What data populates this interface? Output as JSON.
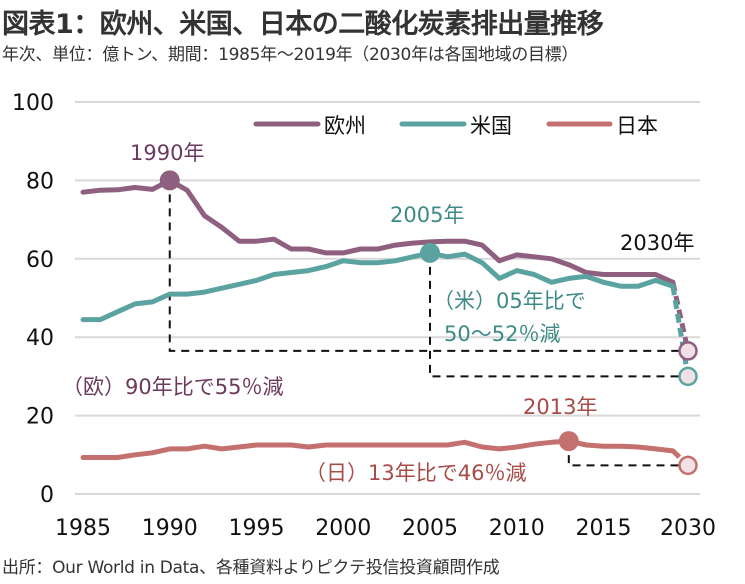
{
  "title": "図表1：欧州、米国、日本の二酸化炭素排出量推移",
  "subtitle": "年次、単位：億トン、期間：1985年～2019年（2030年は各国地域の目標）",
  "source": "出所：Our World in Data、各種資料よりピクテ投信投資顧問作成",
  "colors": {
    "europe": "#8e5f7f",
    "us": "#5ba3a0",
    "japan": "#c4706e",
    "grid": "#d9d9d9"
  },
  "chart_data": {
    "type": "line",
    "title": "欧州、米国、日本の二酸化炭素排出量推移",
    "xlabel": "",
    "ylabel": "億トン",
    "ylim": [
      0,
      100
    ],
    "yticks": [
      "0",
      "20",
      "40",
      "60",
      "80",
      "100"
    ],
    "xticks": [
      "1985",
      "1990",
      "1995",
      "2000",
      "2005",
      "2010",
      "2015",
      "2030"
    ],
    "grid": true,
    "legend_position": "top-right",
    "x": [
      1985,
      1986,
      1987,
      1988,
      1989,
      1990,
      1991,
      1992,
      1993,
      1994,
      1995,
      1996,
      1997,
      1998,
      1999,
      2000,
      2001,
      2002,
      2003,
      2004,
      2005,
      2006,
      2007,
      2008,
      2009,
      2010,
      2011,
      2012,
      2013,
      2014,
      2015,
      2016,
      2017,
      2018,
      2019
    ],
    "series": [
      {
        "name": "欧州",
        "key": "europe",
        "values": [
          77,
          77.5,
          77.6,
          78.2,
          77.7,
          80,
          77.5,
          71,
          68,
          64.5,
          64.5,
          65,
          62.5,
          62.5,
          61.5,
          61.5,
          62.5,
          62.5,
          63.5,
          64,
          64.3,
          64.5,
          64.5,
          63.5,
          59.5,
          61,
          60.5,
          60,
          58.5,
          56.5,
          56,
          56,
          56,
          56,
          54
        ],
        "target": {
          "x": 2030,
          "value": 36.5
        },
        "highlight": {
          "x": 1990,
          "label": "1990年"
        },
        "annotation": "（欧）90年比で55％減"
      },
      {
        "name": "米国",
        "key": "us",
        "values": [
          44.5,
          44.5,
          46.5,
          48.5,
          49,
          51,
          51,
          51.5,
          52.5,
          53.5,
          54.5,
          56,
          56.5,
          57,
          58,
          59.5,
          59,
          59,
          59.5,
          60.5,
          61.5,
          60.5,
          61.2,
          59,
          55,
          57,
          56,
          54,
          55,
          55.5,
          54,
          53,
          53,
          54.5,
          53
        ],
        "target": {
          "x": 2030,
          "value": 30
        },
        "highlight": {
          "x": 2005,
          "label": "2005年"
        },
        "annotation": "（米）05年比で 50～52％減"
      },
      {
        "name": "日本",
        "key": "japan",
        "values": [
          9.3,
          9.3,
          9.3,
          10,
          10.5,
          11.5,
          11.5,
          12.2,
          11.5,
          12,
          12.5,
          12.5,
          12.5,
          12,
          12.5,
          12.5,
          12.5,
          12.5,
          12.5,
          12.5,
          12.5,
          12.5,
          13.2,
          12,
          11.5,
          12,
          12.7,
          13.2,
          13.5,
          12.5,
          12.2,
          12.2,
          12,
          11.5,
          11
        ],
        "target": {
          "x": 2030,
          "value": 7.3
        },
        "highlight": {
          "x": 2013,
          "label": "2013年"
        },
        "annotation": "（日）13年比で46％減"
      }
    ],
    "target_label": "2030年"
  }
}
